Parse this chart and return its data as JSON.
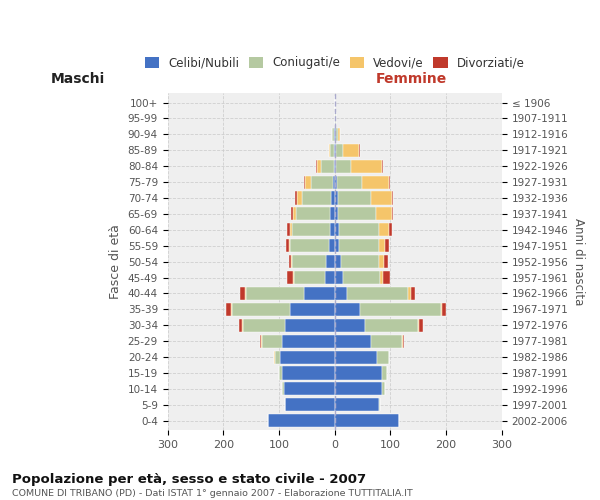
{
  "age_groups": [
    "0-4",
    "5-9",
    "10-14",
    "15-19",
    "20-24",
    "25-29",
    "30-34",
    "35-39",
    "40-44",
    "45-49",
    "50-54",
    "55-59",
    "60-64",
    "65-69",
    "70-74",
    "75-79",
    "80-84",
    "85-89",
    "90-94",
    "95-99",
    "100+"
  ],
  "birth_years": [
    "2002-2006",
    "1997-2001",
    "1992-1996",
    "1987-1991",
    "1982-1986",
    "1977-1981",
    "1972-1976",
    "1967-1971",
    "1962-1966",
    "1957-1961",
    "1952-1956",
    "1947-1951",
    "1942-1946",
    "1937-1941",
    "1932-1936",
    "1927-1931",
    "1922-1926",
    "1917-1921",
    "1912-1916",
    "1907-1911",
    "≤ 1906"
  ],
  "males": {
    "celibi": [
      120,
      90,
      92,
      95,
      98,
      95,
      90,
      80,
      55,
      18,
      16,
      10,
      9,
      8,
      6,
      4,
      2,
      1,
      2,
      0,
      0
    ],
    "coniugati": [
      0,
      0,
      2,
      5,
      10,
      35,
      75,
      105,
      105,
      55,
      60,
      70,
      68,
      62,
      52,
      38,
      22,
      8,
      3,
      0,
      0
    ],
    "vedovi": [
      0,
      0,
      0,
      0,
      2,
      2,
      2,
      2,
      2,
      2,
      2,
      2,
      4,
      5,
      10,
      12,
      8,
      2,
      0,
      0,
      0
    ],
    "divorziati": [
      0,
      0,
      0,
      0,
      0,
      2,
      5,
      8,
      8,
      10,
      5,
      5,
      4,
      4,
      4,
      2,
      2,
      0,
      0,
      0,
      0
    ]
  },
  "females": {
    "nubili": [
      115,
      80,
      85,
      85,
      75,
      65,
      55,
      45,
      22,
      14,
      12,
      8,
      8,
      6,
      5,
      4,
      2,
      2,
      2,
      0,
      0
    ],
    "coniugate": [
      0,
      2,
      5,
      8,
      22,
      55,
      95,
      145,
      110,
      68,
      68,
      72,
      72,
      68,
      60,
      45,
      28,
      12,
      4,
      2,
      0
    ],
    "vedove": [
      0,
      0,
      0,
      0,
      0,
      2,
      2,
      2,
      4,
      5,
      8,
      10,
      18,
      28,
      38,
      48,
      55,
      30,
      4,
      0,
      0
    ],
    "divorziate": [
      0,
      0,
      0,
      0,
      0,
      2,
      6,
      8,
      8,
      12,
      8,
      8,
      5,
      2,
      2,
      2,
      2,
      2,
      0,
      0,
      0
    ]
  },
  "colors": {
    "celibi": "#4472C4",
    "coniugati": "#B5C9A1",
    "vedovi": "#F5C56A",
    "divorziati": "#C0392B"
  },
  "title": "Popolazione per età, sesso e stato civile - 2007",
  "subtitle": "COMUNE DI TRIBANO (PD) - Dati ISTAT 1° gennaio 2007 - Elaborazione TUTTITALIA.IT",
  "xlabel_left": "Maschi",
  "xlabel_right": "Femmine",
  "ylabel_left": "Fasce di età",
  "ylabel_right": "Anni di nascita",
  "xlim": 300,
  "background_color": "#efefef",
  "grid_color": "#cccccc"
}
